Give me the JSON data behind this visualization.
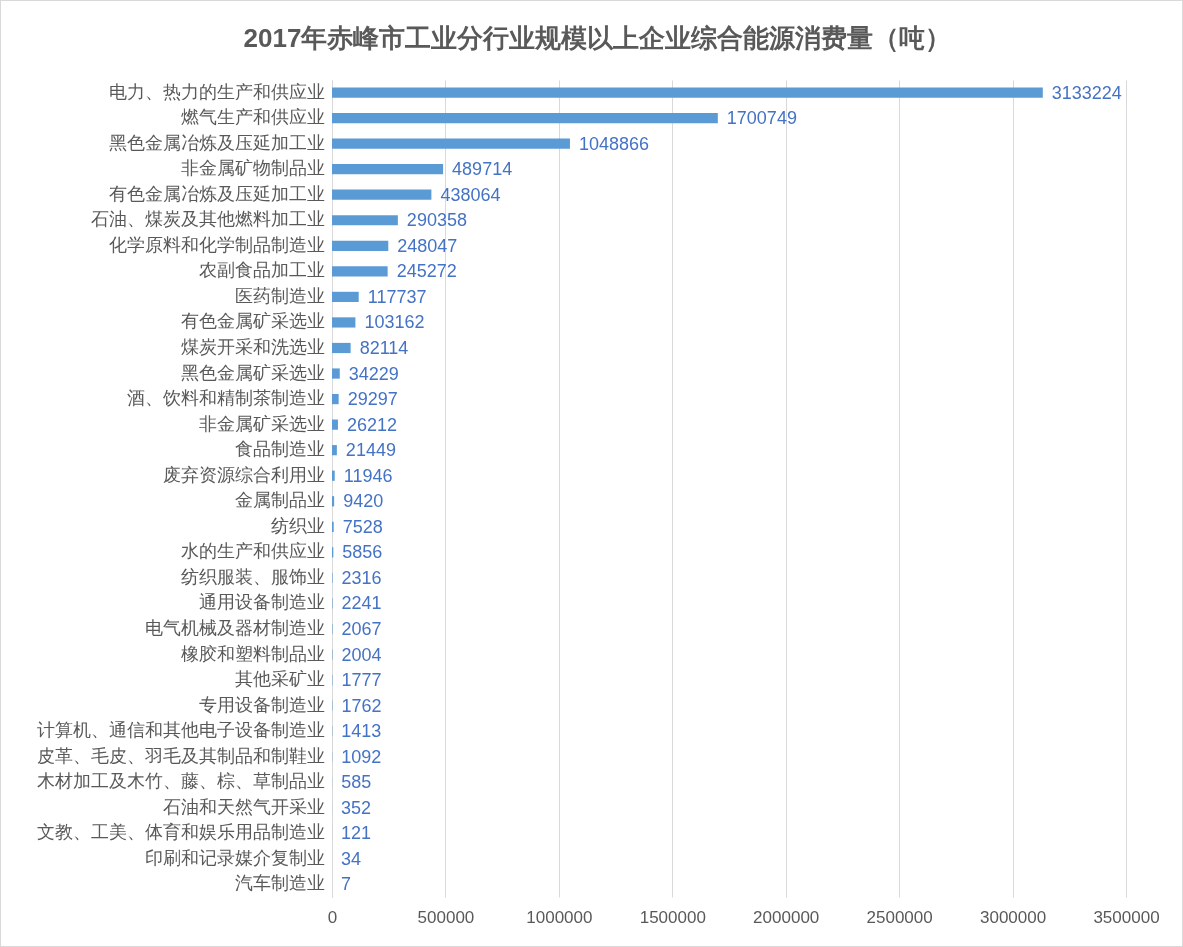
{
  "chart_data": {
    "type": "bar",
    "orientation": "horizontal",
    "title": "2017年赤峰市工业分行业规模以上企业综合能源消费量（吨）",
    "categories": [
      "电力、热力的生产和供应业",
      "燃气生产和供应业",
      "黑色金属冶炼及压延加工业",
      "非金属矿物制品业",
      "有色金属冶炼及压延加工业",
      "石油、煤炭及其他燃料加工业",
      "化学原料和化学制品制造业",
      "农副食品加工业",
      "医药制造业",
      "有色金属矿采选业",
      "煤炭开采和洗选业",
      "黑色金属矿采选业",
      "酒、饮料和精制茶制造业",
      "非金属矿采选业",
      "食品制造业",
      "废弃资源综合利用业",
      "金属制品业",
      "纺织业",
      "水的生产和供应业",
      "纺织服装、服饰业",
      "通用设备制造业",
      "电气机械及器材制造业",
      "橡胶和塑料制品业",
      "其他采矿业",
      "专用设备制造业",
      "计算机、通信和其他电子设备制造业",
      "皮革、毛皮、羽毛及其制品和制鞋业",
      "木材加工及木竹、藤、棕、草制品业",
      "石油和天然气开采业",
      "文教、工美、体育和娱乐用品制造业",
      "印刷和记录媒介复制业",
      "汽车制造业"
    ],
    "values": [
      3133224,
      1700749,
      1048866,
      489714,
      438064,
      290358,
      248047,
      245272,
      117737,
      103162,
      82114,
      34229,
      29297,
      26212,
      21449,
      11946,
      9420,
      7528,
      5856,
      2316,
      2241,
      2067,
      2004,
      1777,
      1762,
      1413,
      1092,
      585,
      352,
      121,
      34,
      7
    ],
    "color": "#5b9bd5",
    "xlim": [
      0,
      3500000
    ],
    "xticks": [
      0,
      500000,
      1000000,
      1500000,
      2000000,
      2500000,
      3000000,
      3500000
    ],
    "grid": "x",
    "data_labels": true
  }
}
